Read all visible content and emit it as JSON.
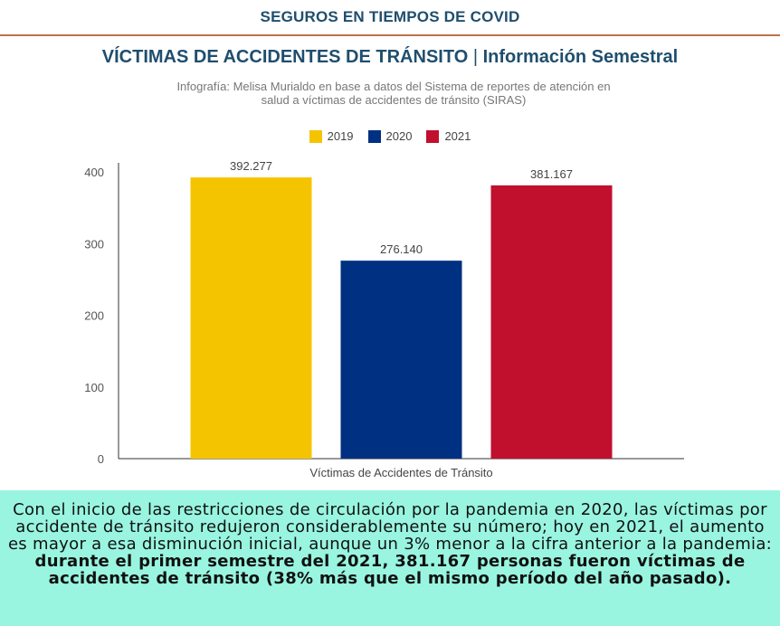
{
  "header": {
    "title": "SEGUROS EN TIEMPOS DE COVID"
  },
  "chart_header": {
    "title_main": "VÍCTIMAS DE ACCIDENTES DE TRÁNSITO",
    "title_sep": "|",
    "title_sub": "Información Semestral",
    "credit_line1": "Infografía: Melisa Murialdo en base a datos del Sistema de reportes de atención en",
    "credit_line2": "salud a víctimas de accidentes de tránsito (SIRAS)"
  },
  "chart_data": {
    "type": "bar",
    "title": "VÍCTIMAS DE ACCIDENTES DE TRÁNSITO | Información Semestral",
    "categories": [
      "Víctimas de Accidentes de Tránsito"
    ],
    "xlabel": "Víctimas de Accidentes de Tránsito",
    "ylabel": "",
    "ylim": [
      0,
      400
    ],
    "yticks": [
      0,
      100,
      200,
      300,
      400
    ],
    "legend_position": "top-center",
    "grid": false,
    "series": [
      {
        "name": "2019",
        "values": [
          392.277
        ],
        "label": "392.277",
        "color": "#f5c400"
      },
      {
        "name": "2020",
        "values": [
          276.14
        ],
        "label": "276.140",
        "color": "#003082"
      },
      {
        "name": "2021",
        "values": [
          381.167
        ],
        "label": "381.167",
        "color": "#c0102e"
      }
    ]
  },
  "footer": {
    "text_normal": "Con el inicio de las restricciones de circulación por la pandemia en 2020, las víctimas por accidente de tránsito redujeron considerablemente su número; hoy en 2021, el aumento es mayor a esa disminución inicial, aunque un 3% menor a la cifra anterior a la pandemia: ",
    "text_bold": "durante el primer semestre del 2021, 381.167 personas fueron víctimas de accidentes de tránsito (38% más que el mismo período del año pasado)."
  }
}
